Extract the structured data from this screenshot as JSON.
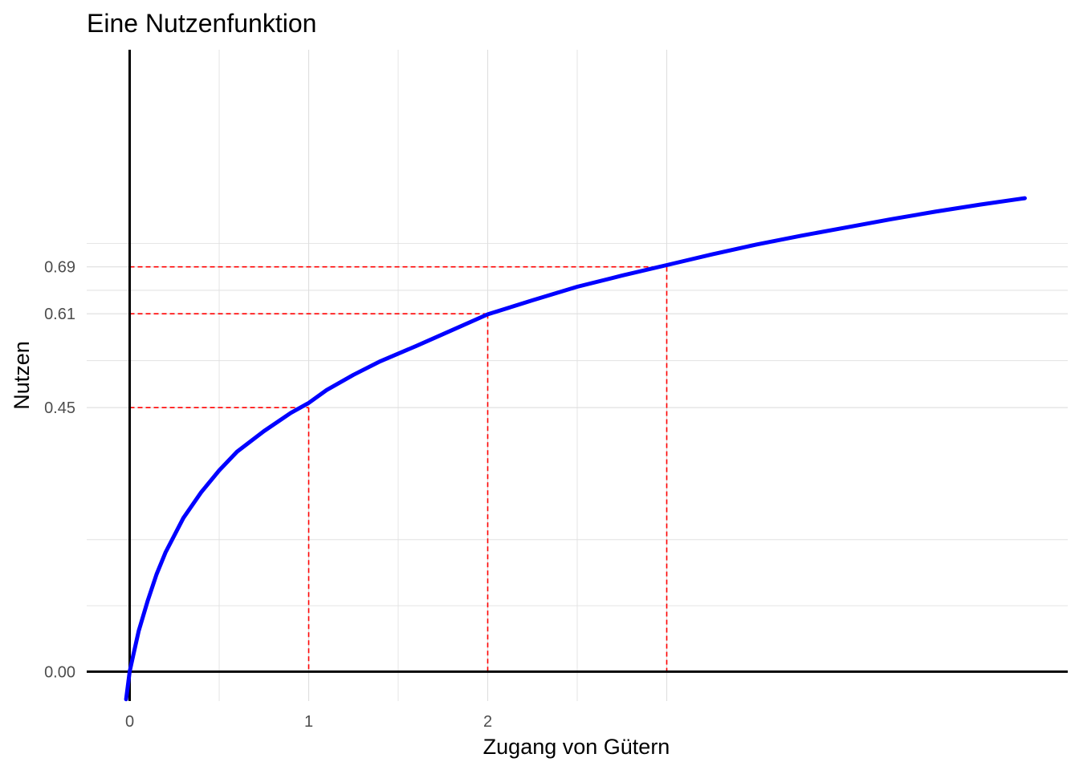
{
  "chart_data": {
    "type": "line",
    "title": "Eine Nutzenfunktion",
    "xlabel": "Zugang von Gütern",
    "ylabel": "Nutzen",
    "x_ticks": [
      {
        "value": 0,
        "label": "0"
      },
      {
        "value": 1,
        "label": "1"
      },
      {
        "value": 2,
        "label": "2"
      }
    ],
    "y_ticks": [
      {
        "value": 0.0,
        "label": "0.00"
      },
      {
        "value": 0.45,
        "label": "0.45"
      },
      {
        "value": 0.61,
        "label": "0.61"
      },
      {
        "value": 0.69,
        "label": "0.69"
      }
    ],
    "xlim": [
      -0.24,
      5.24
    ],
    "ylim": [
      -0.05,
      1.06
    ],
    "grid": true,
    "series": [
      {
        "color": "#0000ff",
        "x": [
          -0.02,
          0,
          0.02,
          0.05,
          0.1,
          0.15,
          0.2,
          0.3,
          0.4,
          0.5,
          0.6,
          0.75,
          0.9,
          1.0,
          1.1,
          1.25,
          1.4,
          1.6,
          1.8,
          2.0,
          2.25,
          2.5,
          2.75,
          3.0,
          3.25,
          3.5,
          3.75,
          4.0,
          4.25,
          4.5,
          4.75,
          5.0
        ],
        "y": [
          -0.047,
          0.0,
          0.028,
          0.069,
          0.12,
          0.166,
          0.203,
          0.262,
          0.306,
          0.343,
          0.375,
          0.41,
          0.441,
          0.458,
          0.48,
          0.506,
          0.529,
          0.555,
          0.582,
          0.609,
          0.633,
          0.656,
          0.675,
          0.693,
          0.711,
          0.728,
          0.743,
          0.757,
          0.771,
          0.784,
          0.796,
          0.807
        ]
      }
    ],
    "guides": [
      {
        "x": 1,
        "y": 0.45
      },
      {
        "x": 2,
        "y": 0.61
      },
      {
        "x": 3,
        "y": 0.69
      }
    ],
    "colors": {
      "line": "#0000ff",
      "guide": "#ff0000",
      "axis": "#000000",
      "grid": "#dedede"
    }
  }
}
